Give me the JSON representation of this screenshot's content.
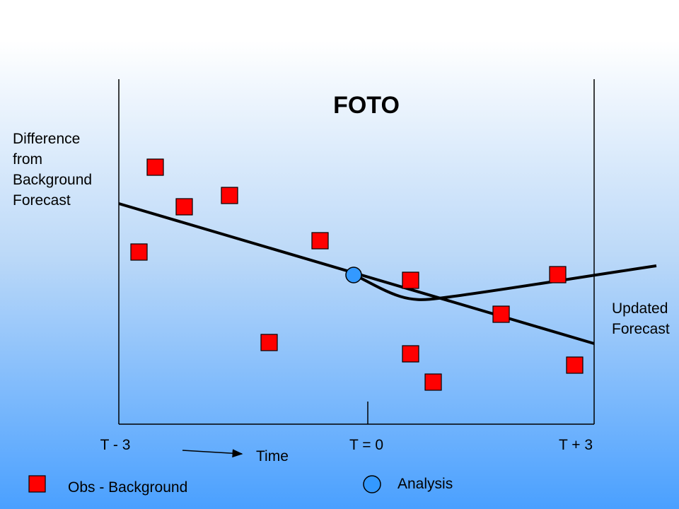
{
  "title": "FOTO",
  "y_label": [
    "Difference",
    "from",
    "Background",
    "Forecast"
  ],
  "updated_forecast_label": [
    "Updated",
    "Forecast"
  ],
  "ticks": [
    "T - 3",
    "T = 0",
    "T + 3"
  ],
  "time_label": "Time",
  "legend": {
    "obs_label": "Obs - Background",
    "analysis_label": "Analysis"
  },
  "colors": {
    "obs": "#ff0000",
    "analysis": "#3399ff",
    "line": "#000000"
  }
}
